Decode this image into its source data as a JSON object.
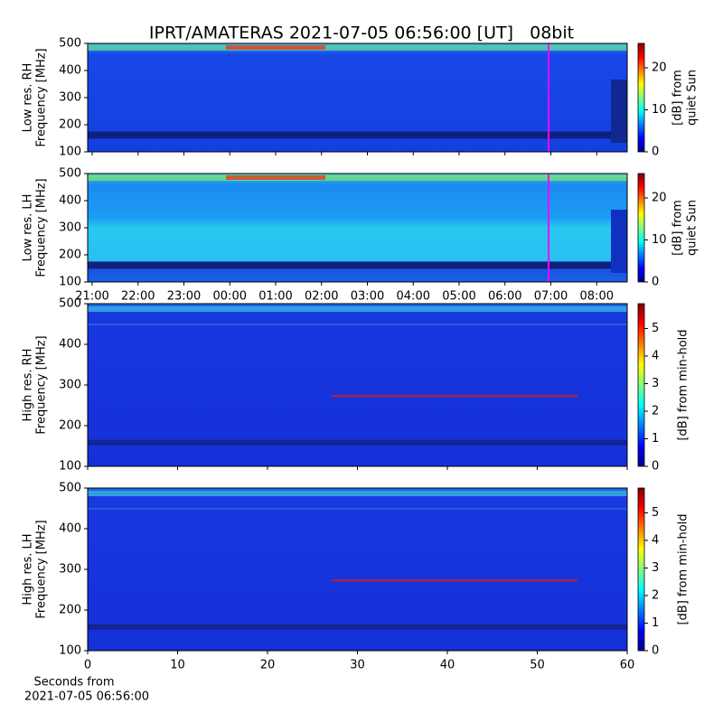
{
  "title": "IPRT/AMATERAS 2021-07-05 06:56:00 [UT]   08bit",
  "chart_data": [
    {
      "type": "heatmap",
      "ylabel": [
        "Low res. RH",
        "Frequency [MHz]"
      ],
      "ylim": [
        100,
        500
      ],
      "yticks": [
        100,
        200,
        300,
        400,
        500
      ],
      "colorbar_label": [
        "[dB] from",
        "quiet Sun"
      ],
      "clim": [
        0,
        25.8
      ],
      "cticks": [
        0,
        10,
        20
      ]
    },
    {
      "type": "heatmap",
      "ylabel": [
        "Low res. LH",
        "Frequency [MHz]"
      ],
      "ylim": [
        100,
        500
      ],
      "yticks": [
        100,
        200,
        300,
        400,
        500
      ],
      "colorbar_label": [
        "[dB] from",
        "quiet Sun"
      ],
      "clim": [
        0,
        25.8
      ],
      "cticks": [
        0,
        10,
        20
      ],
      "xticks": [
        "21:00",
        "22:00",
        "23:00",
        "00:00",
        "01:00",
        "02:00",
        "03:00",
        "04:00",
        "05:00",
        "06:00",
        "07:00",
        "08:00"
      ]
    },
    {
      "type": "heatmap",
      "ylabel": [
        "High res. RH",
        "Frequency [MHz]"
      ],
      "ylim": [
        100,
        500
      ],
      "yticks": [
        100,
        200,
        300,
        400,
        500
      ],
      "colorbar_label": [
        "[dB] from min-hold"
      ],
      "clim": [
        0,
        5.9
      ],
      "cticks": [
        0,
        1,
        2,
        3,
        4,
        5
      ]
    },
    {
      "type": "heatmap",
      "ylabel": [
        "High res. LH",
        "Frequency [MHz]"
      ],
      "ylim": [
        100,
        500
      ],
      "yticks": [
        100,
        200,
        300,
        400,
        500
      ],
      "colorbar_label": [
        "[dB] from min-hold"
      ],
      "clim": [
        0,
        5.9
      ],
      "cticks": [
        0,
        1,
        2,
        3,
        4,
        5
      ],
      "xlim": [
        0,
        60
      ],
      "xticks": [
        0,
        10,
        20,
        30,
        40,
        50,
        60
      ],
      "xlabel": [
        "Seconds from",
        "2021-07-05 06:56:00"
      ]
    }
  ]
}
